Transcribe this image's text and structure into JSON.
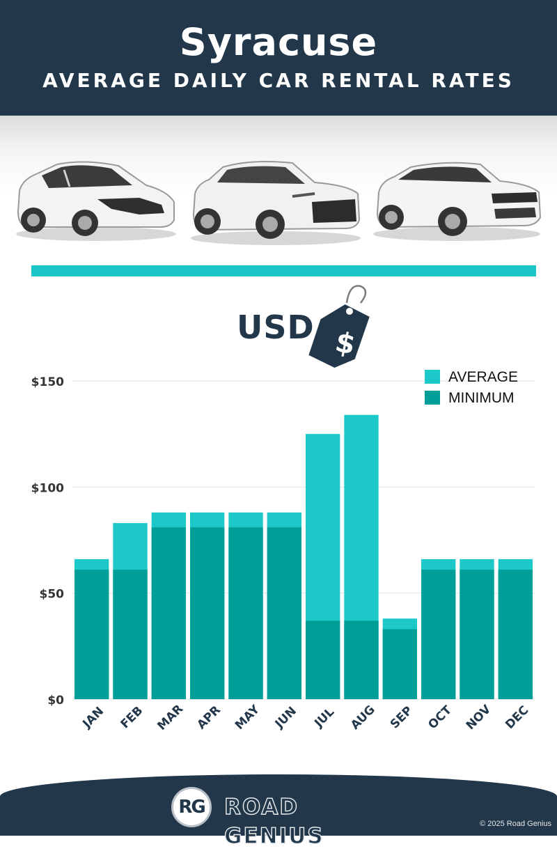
{
  "header": {
    "title": "Syracuse",
    "subtitle": "AVERAGE DAILY CAR RENTAL RATES"
  },
  "currency_label": "USD",
  "price_tag_symbol": "$",
  "chart_data": {
    "type": "bar",
    "stacked": "overlapping",
    "categories": [
      "JAN",
      "FEB",
      "MAR",
      "APR",
      "MAY",
      "JUN",
      "JUL",
      "AUG",
      "SEP",
      "OCT",
      "NOV",
      "DEC"
    ],
    "series": [
      {
        "name": "AVERAGE",
        "color": "#1dc8c8",
        "values": [
          66,
          83,
          88,
          88,
          88,
          88,
          125,
          134,
          38,
          66,
          66,
          66
        ]
      },
      {
        "name": "MINIMUM",
        "color": "#009e98",
        "values": [
          61,
          61,
          81,
          81,
          81,
          81,
          37,
          37,
          33,
          61,
          61,
          61
        ]
      }
    ],
    "yticks": [
      "$0",
      "$50",
      "$100",
      "$150"
    ],
    "ytick_values": [
      0,
      50,
      100,
      150
    ],
    "ylim": [
      0,
      150
    ],
    "grid": true,
    "legend_position": "top-right"
  },
  "footer": {
    "logo_text": "RG",
    "brand": "ROAD GENIUS",
    "copyright": "© 2025 Road Genius"
  },
  "colors": {
    "navy": "#22374a",
    "teal_light": "#1dc8c8",
    "teal_dark": "#009e98",
    "divider": "#1dc6c6"
  },
  "icons": [
    "car-hatchback-icon",
    "car-suv-icon",
    "car-crossover-icon",
    "price-tag-icon"
  ]
}
